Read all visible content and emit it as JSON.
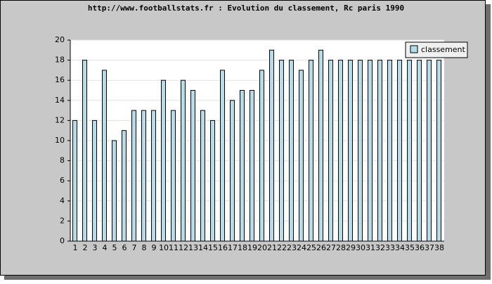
{
  "chart_data": {
    "type": "bar",
    "title": "http://www.footballstats.fr : Evolution du classement, Rc paris 1990",
    "categories": [
      "1",
      "2",
      "3",
      "4",
      "5",
      "6",
      "7",
      "8",
      "9",
      "10",
      "11",
      "12",
      "13",
      "14",
      "15",
      "16",
      "17",
      "18",
      "19",
      "20",
      "21",
      "22",
      "23",
      "24",
      "25",
      "26",
      "27",
      "28",
      "29",
      "30",
      "31",
      "32",
      "33",
      "34",
      "35",
      "36",
      "37",
      "38"
    ],
    "series": [
      {
        "name": "classement",
        "color": "#b4dcea",
        "values": [
          12,
          18,
          12,
          17,
          10,
          11,
          13,
          13,
          13,
          16,
          13,
          16,
          15,
          13,
          12,
          17,
          14,
          15,
          15,
          17,
          19,
          18,
          18,
          17,
          18,
          19,
          18,
          18,
          18,
          18,
          18,
          18,
          18,
          18,
          18,
          18,
          18,
          18
        ]
      }
    ],
    "ylim": [
      0,
      20
    ],
    "yticks": [
      0,
      2,
      4,
      6,
      8,
      10,
      12,
      14,
      16,
      18,
      20
    ],
    "grid": true,
    "legend": "top-right"
  }
}
